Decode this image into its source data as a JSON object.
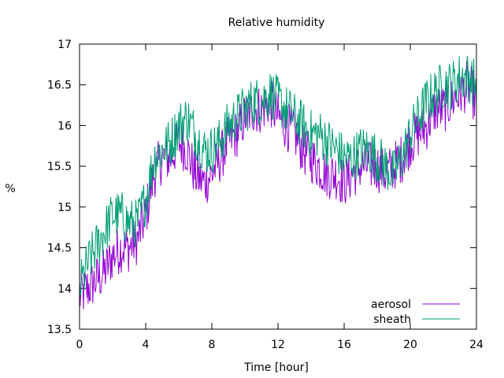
{
  "chart_data": {
    "type": "line",
    "title": "Relative humidity",
    "xlabel": "Time [hour]",
    "ylabel": "%",
    "xlim": [
      0,
      24
    ],
    "ylim": [
      13.5,
      17
    ],
    "x_ticks": [
      "0",
      "4",
      "8",
      "12",
      "16",
      "20",
      "24"
    ],
    "y_ticks": [
      "13.5",
      "14",
      "14.5",
      "15",
      "15.5",
      "16",
      "16.5",
      "17"
    ],
    "grid": false,
    "legend_position": "bottom-right",
    "series": [
      {
        "name": "aerosol",
        "color": "#9400d3",
        "x": [
          0,
          0.5,
          1,
          1.5,
          2,
          2.5,
          3,
          3.5,
          4,
          4.5,
          5,
          5.5,
          6,
          6.5,
          7,
          7.5,
          8,
          8.5,
          9,
          9.5,
          10,
          10.5,
          11,
          11.5,
          12,
          12.5,
          13,
          13.5,
          14,
          14.5,
          15,
          15.5,
          16,
          16.5,
          17,
          17.5,
          18,
          18.5,
          19,
          19.5,
          20,
          20.5,
          21,
          21.5,
          22,
          22.5,
          23,
          23.5,
          24
        ],
        "y": [
          13.9,
          14.0,
          14.1,
          14.2,
          14.4,
          14.5,
          14.5,
          14.6,
          14.9,
          15.4,
          15.6,
          15.6,
          15.8,
          15.7,
          15.4,
          15.3,
          15.4,
          15.6,
          15.8,
          15.9,
          16.1,
          16.2,
          16.2,
          16.3,
          16.1,
          16.0,
          15.9,
          15.7,
          15.6,
          15.5,
          15.4,
          15.4,
          15.3,
          15.4,
          15.5,
          15.5,
          15.5,
          15.4,
          15.5,
          15.6,
          15.8,
          15.9,
          16.0,
          16.2,
          16.2,
          16.3,
          16.4,
          16.5,
          16.3
        ]
      },
      {
        "name": "sheath",
        "color": "#009e73",
        "x": [
          0,
          0.5,
          1,
          1.5,
          2,
          2.5,
          3,
          3.5,
          4,
          4.5,
          5,
          5.5,
          6,
          6.5,
          7,
          7.5,
          8,
          8.5,
          9,
          9.5,
          10,
          10.5,
          11,
          11.5,
          12,
          12.5,
          13,
          13.5,
          14,
          14.5,
          15,
          15.5,
          16,
          16.5,
          17,
          17.5,
          18,
          18.5,
          19,
          19.5,
          20,
          20.5,
          21,
          21.5,
          22,
          22.5,
          23,
          23.5,
          24
        ],
        "y": [
          14.0,
          14.3,
          14.5,
          14.7,
          14.9,
          14.9,
          14.8,
          14.8,
          15.1,
          15.6,
          15.7,
          15.8,
          16.0,
          16.1,
          15.9,
          15.7,
          15.7,
          15.8,
          16.0,
          16.1,
          16.2,
          16.3,
          16.3,
          16.4,
          16.3,
          16.2,
          16.1,
          16.0,
          15.9,
          15.9,
          15.8,
          15.7,
          15.6,
          15.6,
          15.7,
          15.7,
          15.6,
          15.5,
          15.4,
          15.6,
          15.9,
          16.1,
          16.3,
          16.4,
          16.5,
          16.5,
          16.6,
          16.6,
          16.5
        ]
      }
    ]
  }
}
